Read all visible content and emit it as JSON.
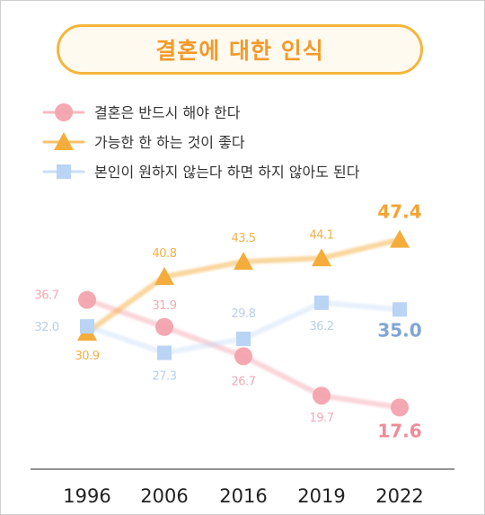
{
  "title": "결혼에 대한 인식",
  "colors": {
    "pink": "#f3a3ad",
    "orange": "#f4ad3c",
    "blue": "#b9d4f4",
    "title_border": "#f6b53c",
    "title_text": "#f39a2b",
    "baseline": "#555555"
  },
  "chart_data": {
    "type": "line",
    "title": "결혼에 대한 인식",
    "categories": [
      "1996",
      "2006",
      "2016",
      "2019",
      "2022"
    ],
    "ylim": [
      10,
      55
    ],
    "grid": false,
    "legend_position": "top-left",
    "series": [
      {
        "name": "결혼은 반드시 해야 한다",
        "marker": "circle",
        "values": [
          36.7,
          31.9,
          26.7,
          19.7,
          17.6
        ],
        "labels": [
          "36.7",
          "31.9",
          "26.7",
          "19.7",
          "17.6"
        ]
      },
      {
        "name": "가능한 한 하는 것이 좋다",
        "marker": "triangle",
        "values": [
          30.9,
          40.8,
          43.5,
          44.1,
          47.4
        ],
        "labels": [
          "30.9",
          "40.8",
          "43.5",
          "44.1",
          "47.4"
        ]
      },
      {
        "name": "본인이 원하지 않는다 하면 하지 않아도 된다",
        "marker": "square",
        "values": [
          32.0,
          27.3,
          29.8,
          36.2,
          35.0
        ],
        "labels": [
          "32.0",
          "27.3",
          "29.8",
          "36.2",
          "35.0"
        ]
      }
    ]
  }
}
